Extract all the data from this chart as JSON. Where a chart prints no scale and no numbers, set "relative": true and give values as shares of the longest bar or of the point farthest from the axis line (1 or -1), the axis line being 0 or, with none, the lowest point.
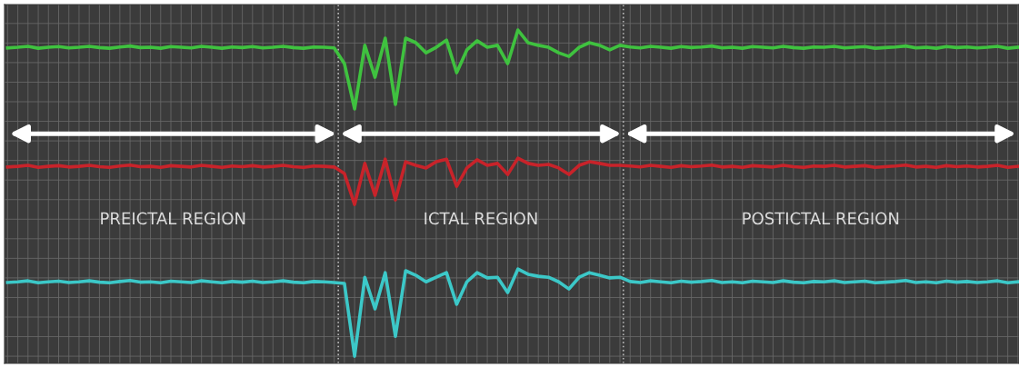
{
  "chart_data": {
    "type": "line",
    "relative": true,
    "grid": true,
    "marker": "none",
    "line_style": "solid",
    "annotations": [
      "PREICTAL REGION",
      "ICTAL REGION",
      "POSTICTAL REGION"
    ],
    "categories": [
      null,
      null,
      null,
      null,
      null,
      null,
      null,
      null,
      null,
      null,
      null,
      null,
      null,
      null,
      null,
      null,
      null,
      null,
      null,
      null,
      null,
      null,
      null,
      null,
      null,
      null,
      null,
      null,
      null,
      null,
      null,
      null,
      null,
      null,
      null,
      null,
      null,
      null,
      null,
      null,
      null,
      null,
      null,
      null,
      null,
      null,
      null,
      null,
      null,
      null,
      null,
      null,
      null,
      null,
      null,
      null,
      null,
      null,
      null,
      null,
      null,
      null,
      null,
      null,
      null,
      null,
      null,
      null,
      null,
      null,
      null,
      null,
      null,
      null,
      null,
      null,
      null,
      null,
      null,
      null,
      null,
      null,
      null,
      null,
      null,
      null,
      null,
      null,
      null,
      null,
      null,
      null,
      null,
      null,
      null,
      null,
      null,
      null,
      null,
      null
    ],
    "series": [
      {
        "color": "#3fc23f",
        "values": [
          0.945,
          0.947,
          0.95,
          0.944,
          0.947,
          0.949,
          0.945,
          0.947,
          0.95,
          0.946,
          0.944,
          0.948,
          0.951,
          0.946,
          0.947,
          0.944,
          0.949,
          0.947,
          0.945,
          0.95,
          0.947,
          0.944,
          0.948,
          0.946,
          0.949,
          0.945,
          0.947,
          0.95,
          0.946,
          0.944,
          0.948,
          0.947,
          0.945,
          0.897,
          0.758,
          0.953,
          0.855,
          0.975,
          0.772,
          0.975,
          0.961,
          0.93,
          0.947,
          0.969,
          0.869,
          0.939,
          0.967,
          0.947,
          0.953,
          0.897,
          1.0,
          0.961,
          0.953,
          0.947,
          0.93,
          0.919,
          0.947,
          0.961,
          0.953,
          0.939,
          0.953,
          0.948,
          0.945,
          0.95,
          0.947,
          0.944,
          0.949,
          0.946,
          0.948,
          0.951,
          0.945,
          0.947,
          0.944,
          0.949,
          0.947,
          0.945,
          0.95,
          0.946,
          0.944,
          0.948,
          0.947,
          0.95,
          0.945,
          0.947,
          0.949,
          0.944,
          0.946,
          0.948,
          0.951,
          0.945,
          0.947,
          0.944,
          0.949,
          0.946,
          0.948,
          0.945,
          0.947,
          0.95,
          0.944,
          0.947
        ]
      },
      {
        "color": "#c8232a",
        "values": [
          0.58,
          0.582,
          0.585,
          0.579,
          0.582,
          0.584,
          0.58,
          0.582,
          0.585,
          0.581,
          0.579,
          0.583,
          0.586,
          0.581,
          0.582,
          0.579,
          0.584,
          0.582,
          0.58,
          0.585,
          0.582,
          0.579,
          0.583,
          0.581,
          0.584,
          0.58,
          0.582,
          0.585,
          0.581,
          0.579,
          0.583,
          0.582,
          0.58,
          0.56,
          0.465,
          0.591,
          0.493,
          0.604,
          0.479,
          0.596,
          0.585,
          0.577,
          0.596,
          0.604,
          0.521,
          0.577,
          0.602,
          0.585,
          0.591,
          0.557,
          0.607,
          0.591,
          0.585,
          0.588,
          0.577,
          0.557,
          0.585,
          0.596,
          0.591,
          0.585,
          0.585,
          0.583,
          0.58,
          0.585,
          0.582,
          0.579,
          0.584,
          0.581,
          0.583,
          0.586,
          0.58,
          0.582,
          0.579,
          0.584,
          0.582,
          0.58,
          0.585,
          0.581,
          0.579,
          0.583,
          0.582,
          0.585,
          0.58,
          0.582,
          0.584,
          0.579,
          0.581,
          0.583,
          0.586,
          0.58,
          0.582,
          0.579,
          0.584,
          0.581,
          0.583,
          0.58,
          0.582,
          0.585,
          0.579,
          0.582
        ]
      },
      {
        "color": "#3cc8c8",
        "values": [
          0.226,
          0.228,
          0.231,
          0.225,
          0.228,
          0.23,
          0.226,
          0.228,
          0.231,
          0.227,
          0.225,
          0.229,
          0.232,
          0.227,
          0.228,
          0.225,
          0.23,
          0.228,
          0.226,
          0.231,
          0.228,
          0.225,
          0.229,
          0.227,
          0.23,
          0.226,
          0.228,
          0.231,
          0.227,
          0.225,
          0.229,
          0.228,
          0.226,
          0.223,
          0.0,
          0.242,
          0.145,
          0.256,
          0.061,
          0.262,
          0.248,
          0.228,
          0.242,
          0.256,
          0.159,
          0.228,
          0.256,
          0.24,
          0.242,
          0.195,
          0.267,
          0.251,
          0.245,
          0.242,
          0.228,
          0.206,
          0.242,
          0.256,
          0.248,
          0.24,
          0.242,
          0.229,
          0.226,
          0.231,
          0.228,
          0.225,
          0.23,
          0.227,
          0.229,
          0.232,
          0.226,
          0.228,
          0.225,
          0.23,
          0.228,
          0.226,
          0.231,
          0.227,
          0.225,
          0.229,
          0.228,
          0.231,
          0.226,
          0.228,
          0.23,
          0.225,
          0.227,
          0.229,
          0.232,
          0.226,
          0.228,
          0.225,
          0.23,
          0.227,
          0.229,
          0.226,
          0.228,
          0.231,
          0.225,
          0.228
        ]
      }
    ]
  }
}
